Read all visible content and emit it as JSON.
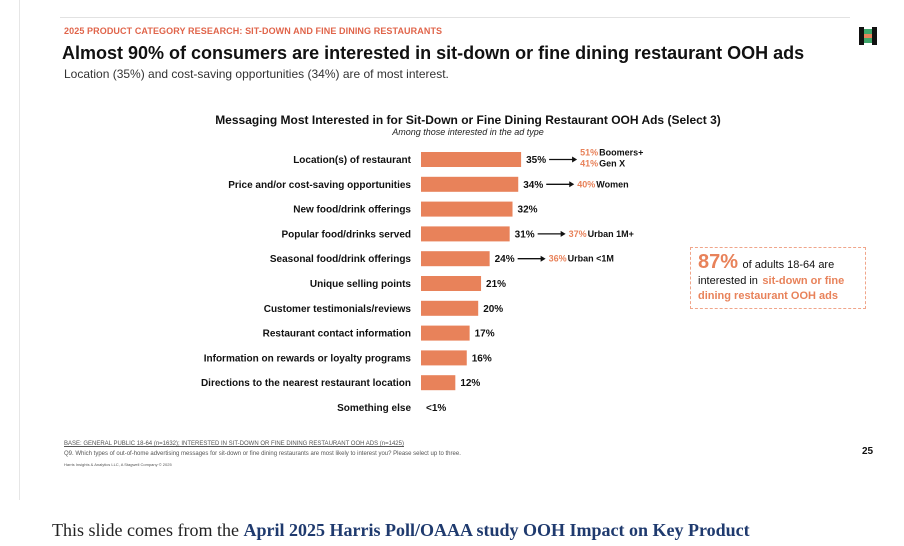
{
  "slide": {
    "category": "2025 PRODUCT CATEGORY RESEARCH: SIT-DOWN AND FINE DINING RESTAURANTS",
    "headline": "Almost 90% of consumers are interested in sit-down or fine dining restaurant OOH ads",
    "subheadline": "Location (35%) and cost-saving opportunities (34%) are of most interest.",
    "base_note": "BASE: GENERAL PUBLIC 18-64 (n=1632); INTERESTED IN SIT-DOWN OR FINE DINING RESTAURANT OOH ADS (n=1425)",
    "question_note": "Q9. Which types of out-of-home advertising messages for sit-down or fine dining restaurants are most likely to interest you? Please select up to three.",
    "copyright": "Harris Insights & Analytics LLC, A Stagwell Company © 2025",
    "page_number": "25"
  },
  "callout": {
    "percent": "87%",
    "text_before": "of adults 18-64 are",
    "text_mid": "interested in",
    "highlight_1": "sit-down or fine",
    "highlight_2": "dining restaurant OOH ads"
  },
  "caption": {
    "text": "This slide comes from the ",
    "link_text": "April 2025 Harris Poll/OAAA study  OOH Impact on Key Product"
  },
  "colors": {
    "bar": "#e8825a",
    "accent_text": "#e0644a"
  },
  "chart_data": {
    "type": "bar",
    "orientation": "horizontal",
    "title": "Messaging Most Interested in for Sit-Down or Fine Dining Restaurant OOH Ads (Select 3)",
    "subtitle": "Among those interested in the ad type",
    "categories": [
      "Location(s) of restaurant",
      "Price and/or cost-saving opportunities",
      "New food/drink offerings",
      "Popular food/drinks served",
      "Seasonal food/drink offerings",
      "Unique selling points",
      "Customer testimonials/reviews",
      "Restaurant contact information",
      "Information on rewards or loyalty programs",
      "Directions to the nearest restaurant location",
      "Something else"
    ],
    "values": [
      35,
      34,
      32,
      31,
      24,
      21,
      20,
      17,
      16,
      12,
      0.4
    ],
    "value_labels": [
      "35%",
      "34%",
      "32%",
      "31%",
      "24%",
      "21%",
      "20%",
      "17%",
      "16%",
      "12%",
      "<1%"
    ],
    "xlim": [
      0,
      100
    ],
    "unit": "%",
    "grid": false,
    "annotations": [
      {
        "category_index": 0,
        "items": [
          {
            "pct": "51%",
            "group": "Boomers+"
          },
          {
            "pct": "41%",
            "group": "Gen X"
          }
        ]
      },
      {
        "category_index": 1,
        "items": [
          {
            "pct": "40%",
            "group": "Women"
          }
        ]
      },
      {
        "category_index": 3,
        "items": [
          {
            "pct": "37%",
            "group": "Urban 1M+"
          }
        ]
      },
      {
        "category_index": 4,
        "items": [
          {
            "pct": "36%",
            "group": "Urban <1M"
          }
        ]
      }
    ]
  }
}
